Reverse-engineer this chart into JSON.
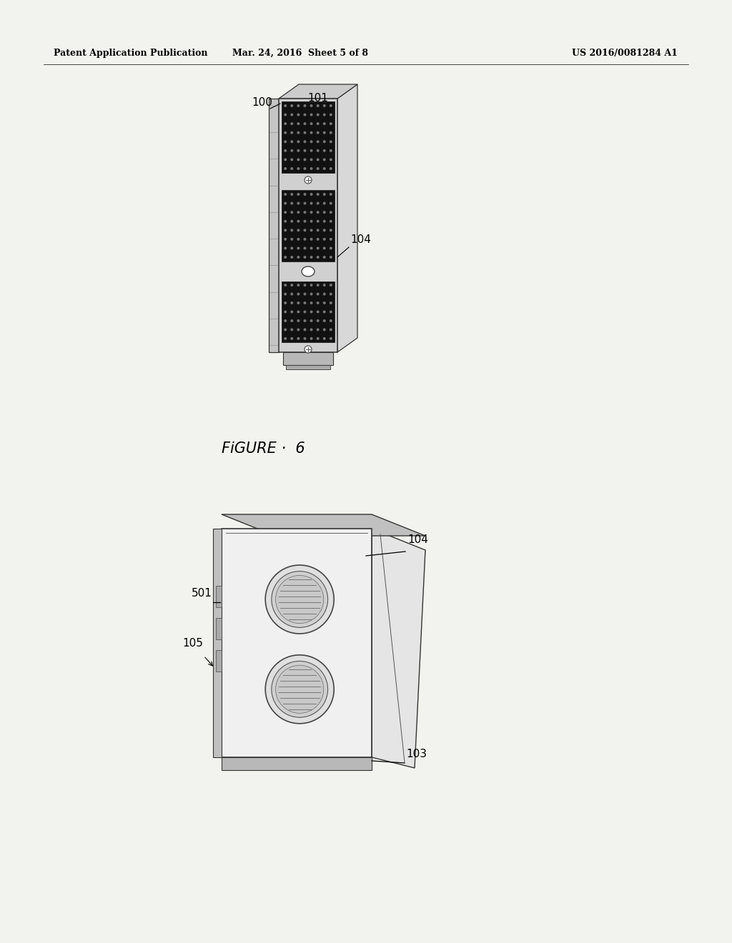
{
  "background_color": "#f2f2ee",
  "header_left": "Patent Application Publication",
  "header_center": "Mar. 24, 2016  Sheet 5 of 8",
  "header_right": "US 2016/0081284 A1",
  "figure_label": "FiGURE · 6"
}
